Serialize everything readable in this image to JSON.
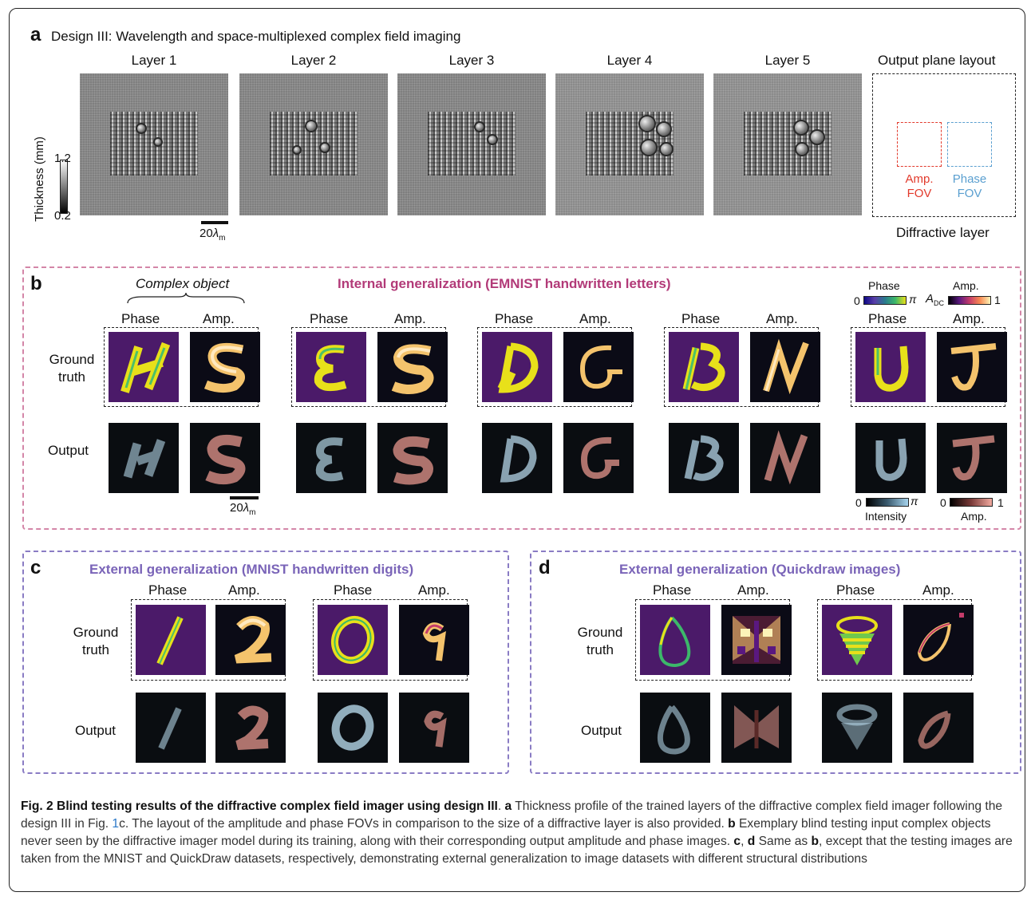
{
  "panel_a": {
    "letter": "a",
    "title": "Design III: Wavelength and space-multiplexed complex field imaging",
    "layers": [
      "Layer 1",
      "Layer 2",
      "Layer 3",
      "Layer 4",
      "Layer 5"
    ],
    "thickness_label": "Thickness (mm)",
    "thickness_max": "1.2",
    "thickness_min": "0.2",
    "scalebar_num": "20",
    "scalebar_lambda": "λ",
    "scalebar_sub": "m",
    "layout_title": "Output plane layout",
    "amp_fov_1": "Amp.",
    "amp_fov_2": "FOV",
    "phase_fov_1": "Phase",
    "phase_fov_2": "FOV",
    "layout_caption": "Diffractive layer"
  },
  "panel_b": {
    "letter": "b",
    "title": "Internal generalization (EMNIST handwritten letters)",
    "complex_object": "Complex object",
    "phase_label": "Phase",
    "amp_label": "Amp.",
    "row_gt_1": "Ground",
    "row_gt_2": "truth",
    "row_out": "Output",
    "letters": [
      "H",
      "S",
      "E",
      "S",
      "D",
      "G",
      "B",
      "N",
      "U",
      "J"
    ],
    "cbar_phase_title": "Phase",
    "cbar_amp_title": "Amp.",
    "cbar_zero": "0",
    "cbar_pi": "π",
    "cbar_adc": "A",
    "cbar_adc_sub": "DC",
    "cbar_one": "1",
    "cbar_intensity": "Intensity",
    "cbar_amp_out": "Amp.",
    "scalebar_num": "20",
    "scalebar_lambda": "λ",
    "scalebar_sub": "m"
  },
  "panel_c": {
    "letter": "c",
    "title": "External generalization (MNIST handwritten digits)",
    "phase_label": "Phase",
    "amp_label": "Amp.",
    "row_gt_1": "Ground",
    "row_gt_2": "truth",
    "row_out": "Output",
    "digits": [
      "1",
      "2",
      "0",
      "9"
    ]
  },
  "panel_d": {
    "letter": "d",
    "title": "External generalization (Quickdraw images)",
    "phase_label": "Phase",
    "amp_label": "Amp.",
    "row_gt_1": "Ground",
    "row_gt_2": "truth",
    "row_out": "Output"
  },
  "colors": {
    "amp_fov": "#e23a2c",
    "phase_fov": "#5a9fd0",
    "pink_frame": "#d486a8",
    "purple_frame": "#8a7cc4",
    "phase_gt_bg": "#4b1a69",
    "phase_gt_stroke": "#e8e01a",
    "amp_gt_stroke": "#f4c36c",
    "out_phase": "#bfe3f5",
    "out_amp": "#e5968c"
  },
  "caption": {
    "fig": "Fig. 2 Blind testing results of the diffractive complex field imager using design III",
    "a_letter": "a",
    "a_text": " Thickness profile of the trained layers of the diffractive complex field imager following the design III in Fig. ",
    "a_ref": "1",
    "a_text2": "c. The layout of the amplitude and phase FOVs in comparison to the size of a diffractive layer is also provided. ",
    "b_letter": "b",
    "b_text": " Exemplary blind testing input complex objects never seen by the diffractive imager model during its training, along with their corresponding output amplitude and phase images. ",
    "c_letter": "c",
    "sep": ", ",
    "d_letter": "d",
    "cd_text": " Same as ",
    "cd_b": "b",
    "cd_text2": ", except that the testing images are taken from the MNIST and QuickDraw datasets, respectively, demonstrating external generalization to image datasets with different structural distributions"
  }
}
